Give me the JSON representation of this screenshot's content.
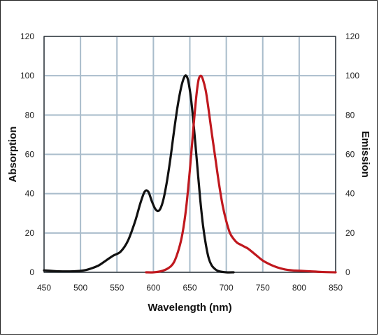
{
  "chart_data": {
    "type": "line",
    "xlabel": "Wavelength (nm)",
    "ylabel_left": "Absorption",
    "ylabel_right": "Emission",
    "xlim": [
      450,
      850
    ],
    "ylim": [
      0,
      120
    ],
    "x_ticks": [
      450,
      500,
      550,
      600,
      650,
      700,
      750,
      800,
      850
    ],
    "y_ticks": [
      0,
      20,
      40,
      60,
      80,
      100,
      120
    ],
    "grid": true,
    "colors": {
      "grid": "#a9bccb",
      "absorption": "#111111",
      "emission": "#c0181e"
    },
    "series": [
      {
        "key": "absorption",
        "x": [
          450,
          470,
          490,
          505,
          515,
          525,
          535,
          545,
          555,
          565,
          575,
          582,
          588,
          593,
          598,
          603,
          608,
          613,
          618,
          623,
          628,
          633,
          638,
          642,
          645,
          648,
          652,
          656,
          660,
          664,
          668,
          672,
          676,
          680,
          685,
          690,
          700,
          710
        ],
        "y": [
          1,
          0.5,
          0.5,
          1,
          2,
          3.5,
          6,
          8.5,
          10.5,
          16,
          26,
          35,
          41,
          41,
          36,
          32,
          31.5,
          36,
          45,
          57,
          71,
          84,
          94,
          99,
          100,
          97,
          87,
          72,
          55,
          38,
          24,
          14,
          7,
          3.5,
          1.5,
          0.5,
          0,
          0
        ]
      },
      {
        "key": "emission",
        "x": [
          590,
          600,
          610,
          620,
          628,
          635,
          640,
          645,
          650,
          655,
          659,
          662,
          665,
          668,
          672,
          676,
          680,
          685,
          690,
          695,
          700,
          705,
          710,
          715,
          720,
          725,
          730,
          740,
          750,
          760,
          770,
          780,
          790,
          800,
          815,
          830,
          850
        ],
        "y": [
          0,
          0,
          0.5,
          2,
          5,
          12,
          20,
          33,
          52,
          74,
          90,
          98,
          100,
          98,
          92,
          82,
          71,
          58,
          45,
          34,
          26,
          20,
          17,
          15,
          14,
          13,
          12,
          9,
          6,
          4,
          2.5,
          1.5,
          1,
          0.8,
          0.5,
          0.2,
          0
        ]
      }
    ]
  }
}
